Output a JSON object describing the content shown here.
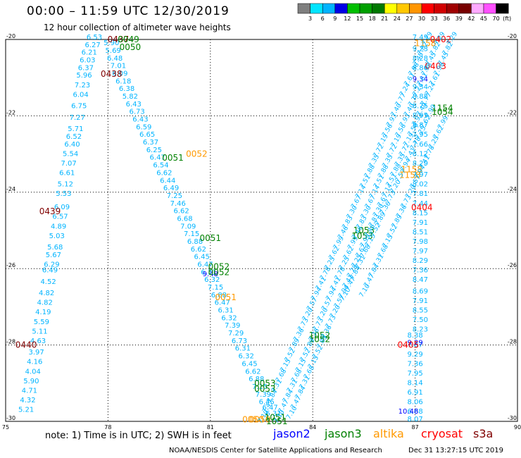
{
  "title": "00:00 – 11:59 UTC 12/30/2019",
  "subtitle": "12 hour collection of altimeter wave heights",
  "note": "note:  1) Time is in UTC;  2) SWH is in feet",
  "credit": "NOAA/NESDIS Center for Satellite Applications and Research",
  "stamp": "Dec 31 13:27:15 UTC 2019",
  "colorbar": {
    "colors": [
      "#7f7f7f",
      "#00e5ff",
      "#00b4ff",
      "#0000e6",
      "#00bf00",
      "#00a000",
      "#007800",
      "#ffff00",
      "#ffc800",
      "#ff9600",
      "#ff0000",
      "#d20000",
      "#a00000",
      "#780000",
      "#ffaaff",
      "#ff50ff",
      "#000000"
    ],
    "ticks": [
      "3",
      "6",
      "9",
      "12",
      "15",
      "18",
      "21",
      "24",
      "27",
      "30",
      "33",
      "36",
      "39",
      "42",
      "45",
      "70"
    ],
    "unit": "(ft)"
  },
  "satellites": [
    {
      "name": "jason2",
      "color": "#0000ff"
    },
    {
      "name": "jason3",
      "color": "#008000"
    },
    {
      "name": "altika",
      "color": "#ff9900"
    },
    {
      "name": "cryosat",
      "color": "#ff0000"
    },
    {
      "name": "s3a",
      "color": "#800000"
    }
  ],
  "chart_data": {
    "type": "scatter",
    "title": "00:00 – 11:59 UTC 12/30/2019",
    "subtitle": "12 hour collection of altimeter wave heights",
    "xlim": [
      75,
      90
    ],
    "ylim": [
      -30,
      -20
    ],
    "x_ticks": [
      "75",
      "78",
      "81",
      "84",
      "87",
      "90"
    ],
    "y_ticks": [
      "-20",
      "-22",
      "-24",
      "-26",
      "-28",
      "-30"
    ],
    "swh_unit": "ft",
    "track_cyan": {
      "color": "#00b4ff",
      "x": [
        77.6,
        77.55,
        77.45,
        77.4,
        77.35,
        77.3,
        77.25,
        77.2,
        77.15,
        77.1,
        77.05,
        77.0,
        76.95,
        76.9,
        76.85,
        76.8,
        76.75,
        76.7,
        76.65,
        76.6,
        76.55,
        76.5,
        76.45,
        76.4,
        76.35,
        76.3,
        76.25,
        76.2,
        76.15,
        76.1,
        76.05,
        76.0,
        75.95,
        75.9,
        75.85,
        75.8,
        75.75,
        75.7,
        75.65,
        75.6
      ],
      "y": [
        -20.0,
        -20.2,
        -20.4,
        -20.6,
        -20.8,
        -21.0,
        -21.25,
        -21.5,
        -21.8,
        -22.1,
        -22.4,
        -22.6,
        -22.8,
        -23.05,
        -23.3,
        -23.55,
        -23.85,
        -24.1,
        -24.45,
        -24.7,
        -24.95,
        -25.2,
        -25.5,
        -25.7,
        -25.95,
        -26.1,
        -26.4,
        -26.7,
        -26.95,
        -27.2,
        -27.45,
        -27.7,
        -27.95,
        -28.25,
        -28.5,
        -28.75,
        -29.0,
        -29.25,
        -29.5,
        -29.75
      ],
      "swh": [
        6.53,
        6.27,
        6.21,
        6.03,
        6.37,
        5.96,
        7.23,
        6.04,
        6.75,
        7.27,
        5.71,
        6.52,
        6.4,
        5.54,
        7.07,
        6.61,
        5.12,
        5.53,
        6.09,
        6.57,
        4.89,
        5.03,
        5.68,
        5.67,
        6.29,
        6.49,
        4.52,
        4.82,
        4.82,
        4.19,
        5.59,
        5.11,
        4.63,
        3.97,
        4.16,
        4.04,
        5.9,
        4.71,
        4.32,
        5.21
      ]
    },
    "track_mid": {
      "color": "#00b4ff",
      "x": [
        78.1,
        78.15,
        78.2,
        78.3,
        78.35,
        78.45,
        78.55,
        78.65,
        78.75,
        78.85,
        78.95,
        79.05,
        79.15,
        79.25,
        79.35,
        79.45,
        79.55,
        79.65,
        79.75,
        79.85,
        79.95,
        80.05,
        80.15,
        80.25,
        80.35,
        80.45,
        80.55,
        80.65,
        80.75,
        80.85,
        80.95,
        81.05,
        81.15,
        81.25,
        81.35,
        81.45,
        81.55,
        81.65,
        81.75,
        81.85,
        81.95,
        82.05,
        82.15,
        82.25,
        82.35,
        82.45,
        82.55,
        82.65,
        82.75,
        82.85
      ],
      "y": [
        -20.15,
        -20.35,
        -20.55,
        -20.75,
        -20.95,
        -21.15,
        -21.35,
        -21.55,
        -21.75,
        -21.95,
        -22.15,
        -22.35,
        -22.55,
        -22.75,
        -22.95,
        -23.15,
        -23.35,
        -23.55,
        -23.75,
        -23.95,
        -24.15,
        -24.35,
        -24.55,
        -24.75,
        -24.95,
        -25.15,
        -25.35,
        -25.55,
        -25.75,
        -25.95,
        -26.15,
        -26.35,
        -26.55,
        -26.75,
        -26.95,
        -27.15,
        -27.35,
        -27.55,
        -27.75,
        -27.95,
        -28.15,
        -28.35,
        -28.55,
        -28.75,
        -28.95,
        -29.15,
        -29.35,
        -29.55,
        -29.7,
        -29.85
      ],
      "swh": [
        5.9,
        5.69,
        6.48,
        7.01,
        6.09,
        6.18,
        6.38,
        5.82,
        6.43,
        6.73,
        6.43,
        6.59,
        6.65,
        6.37,
        6.25,
        6.47,
        6.54,
        6.62,
        6.44,
        6.49,
        7.25,
        7.46,
        6.62,
        6.68,
        7.09,
        7.15,
        6.88,
        6.62,
        6.45,
        6.47,
        6.31,
        6.32,
        7.15,
        6.88,
        6.47,
        6.31,
        6.32,
        7.39,
        7.29,
        6.73,
        6.31,
        6.32,
        6.45,
        6.62,
        6.88,
        7.15,
        7.39,
        6.45,
        6.47,
        6.31
      ]
    },
    "track_right": {
      "color": "#00b4ff",
      "x": [
        87.15,
        87.15,
        87.15,
        87.15,
        87.15,
        87.15,
        87.15,
        87.15,
        87.15,
        87.15,
        87.15,
        87.15,
        87.15,
        87.15,
        87.15,
        87.15,
        87.15,
        87.15,
        87.15,
        87.15,
        87.15,
        87.15,
        87.15,
        87.15,
        87.15,
        87.15,
        87.15,
        87.15,
        87.15,
        87.15
      ],
      "y": [
        -20.0,
        -20.3,
        -20.55,
        -20.8,
        -21.3,
        -21.55,
        -21.8,
        -22.05,
        -22.3,
        -22.55,
        -22.8,
        -23.05,
        -23.3,
        -23.6,
        -23.85,
        -24.1,
        -24.35,
        -24.6,
        -24.85,
        -25.1,
        -25.35,
        -25.6,
        -25.85,
        -26.1,
        -26.35,
        -26.65,
        -26.9,
        -27.15,
        -27.4,
        -27.65
      ],
      "swh": [
        7.49,
        9.23,
        8.28,
        8.86,
        9.34,
        8.88,
        8.75,
        8.95,
        8.87,
        7.95,
        7.66,
        8.12,
        8.29,
        7.97,
        8.02,
        7.81,
        7.44,
        8.15,
        7.91,
        8.51,
        7.98,
        7.97,
        8.29,
        7.36,
        8.47,
        8.69,
        7.91,
        8.55,
        7.5,
        8.23
      ]
    },
    "track_right_lower": {
      "color": "#00b4ff",
      "x": [
        87.0,
        87.0,
        87.0,
        87.0,
        87.0,
        87.0,
        87.0,
        87.0,
        87.0,
        87.0
      ],
      "y": [
        -27.8,
        -28.05,
        -28.3,
        -28.55,
        -28.8,
        -29.05,
        -29.3,
        -29.55,
        -29.8,
        -30.0
      ],
      "swh": [
        8.38,
        7.87,
        9.29,
        7.36,
        7.95,
        8.14,
        6.91,
        8.06,
        6.68,
        8.07
      ]
    },
    "track_right_blue_labels": [
      {
        "x": 87.15,
        "y": -21.1,
        "swh": 9.34,
        "color": "#0000ff"
      },
      {
        "x": 87.0,
        "y": -28.0,
        "swh": 9.29,
        "color": "#0000ff"
      },
      {
        "x": 86.8,
        "y": -29.8,
        "swh": 10.48,
        "color": "#0000ff"
      },
      {
        "x": 81.0,
        "y": -26.2,
        "swh": 9.48,
        "color": "#0000ff"
      }
    ],
    "time_labels": [
      {
        "text": "0437",
        "x": 78.3,
        "y": -20.0,
        "color": "#800000"
      },
      {
        "text": "0049",
        "x": 78.6,
        "y": -20.0,
        "color": "#008000"
      },
      {
        "text": "0050",
        "x": 78.65,
        "y": -20.2,
        "color": "#008000"
      },
      {
        "text": "0438",
        "x": 78.1,
        "y": -20.9,
        "color": "#800000"
      },
      {
        "text": "0439",
        "x": 76.3,
        "y": -24.5,
        "color": "#800000"
      },
      {
        "text": "0440",
        "x": 75.6,
        "y": -28.0,
        "color": "#800000"
      },
      {
        "text": "0051",
        "x": 79.9,
        "y": -23.1,
        "color": "#008000"
      },
      {
        "text": "0052",
        "x": 80.6,
        "y": -23.0,
        "color": "#ff9900"
      },
      {
        "text": "0051",
        "x": 81.0,
        "y": -25.2,
        "color": "#008000"
      },
      {
        "text": "0052",
        "x": 81.25,
        "y": -25.95,
        "color": "#008000"
      },
      {
        "text": "0052",
        "x": 81.25,
        "y": -26.1,
        "color": "#008000"
      },
      {
        "text": "0051",
        "x": 81.45,
        "y": -26.75,
        "color": "#ff9900"
      },
      {
        "text": "0053",
        "x": 82.6,
        "y": -29.0,
        "color": "#008000"
      },
      {
        "text": "0053",
        "x": 82.6,
        "y": -29.15,
        "color": "#008000"
      },
      {
        "text": "0050",
        "x": 82.25,
        "y": -29.95,
        "color": "#ff9900"
      },
      {
        "text": "0050",
        "x": 82.45,
        "y": -29.95,
        "color": "#ff9900"
      },
      {
        "text": "1051",
        "x": 82.9,
        "y": -29.9,
        "color": "#008000"
      },
      {
        "text": "1051",
        "x": 82.95,
        "y": -30.0,
        "color": "#008000"
      },
      {
        "text": "1052",
        "x": 84.2,
        "y": -27.75,
        "color": "#008000"
      },
      {
        "text": "1052",
        "x": 84.2,
        "y": -27.85,
        "color": "#008000"
      },
      {
        "text": "1053",
        "x": 85.5,
        "y": -25.0,
        "color": "#008000"
      },
      {
        "text": "1053",
        "x": 85.45,
        "y": -25.15,
        "color": "#008000"
      },
      {
        "text": "1154",
        "x": 87.8,
        "y": -21.8,
        "color": "#008000"
      },
      {
        "text": "1054",
        "x": 87.8,
        "y": -21.9,
        "color": "#008000"
      },
      {
        "text": "1158",
        "x": 86.9,
        "y": -23.4,
        "color": "#ff9900"
      },
      {
        "text": "1158",
        "x": 86.85,
        "y": -23.55,
        "color": "#ff9900"
      },
      {
        "text": "0402",
        "x": 87.75,
        "y": -20.0,
        "color": "#ff0000"
      },
      {
        "text": "1158",
        "x": 87.3,
        "y": -20.1,
        "color": "#ff9900"
      },
      {
        "text": "0403",
        "x": 87.6,
        "y": -20.7,
        "color": "#ff0000"
      },
      {
        "text": "0404",
        "x": 87.2,
        "y": -24.4,
        "color": "#ff0000"
      },
      {
        "text": "0405",
        "x": 86.8,
        "y": -28.0,
        "color": "#ff0000"
      }
    ]
  }
}
